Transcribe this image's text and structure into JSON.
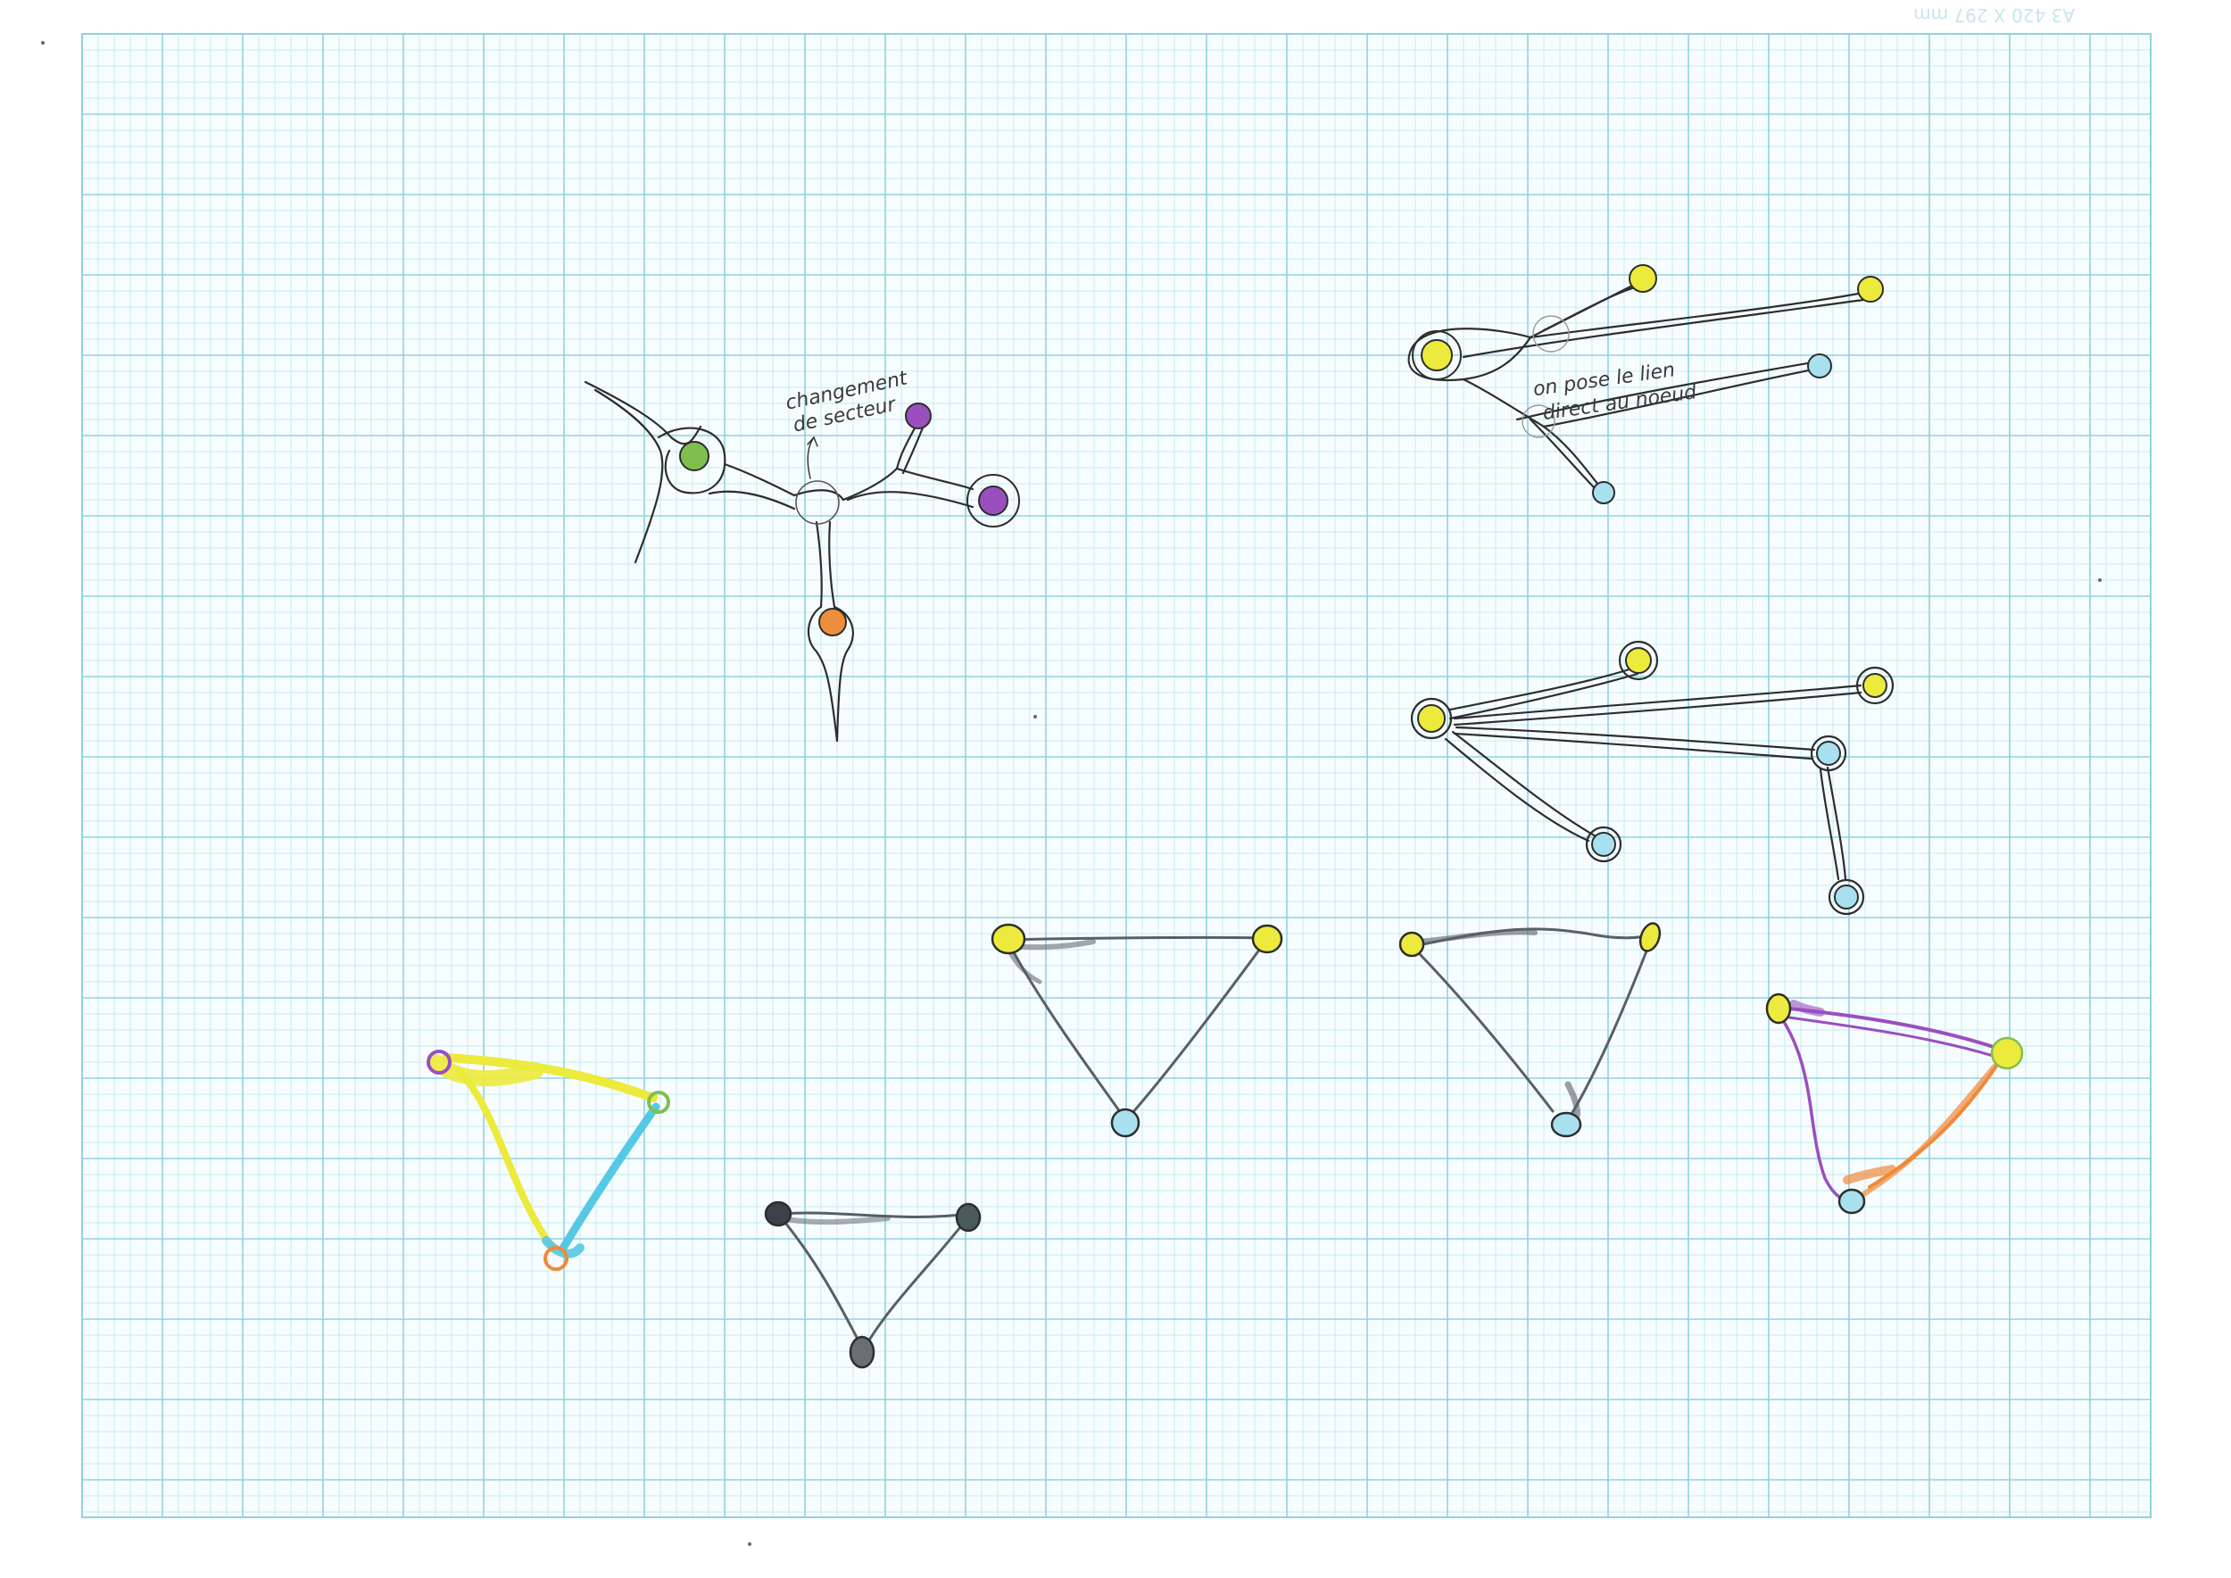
{
  "sheet": {
    "print_mark": "A3 420 X 297 mm",
    "grid_color": "#8fd3df",
    "grid_fine_color": "#c6ecf1"
  },
  "annotations": {
    "sector_line1": "changement",
    "sector_line2": "de secteur",
    "link_line1": "on pose le lien",
    "link_line2": "direct au noeud"
  },
  "colors": {
    "yellow": "#ecea3c",
    "green": "#7fbf4e",
    "purple": "#9a4fbf",
    "orange": "#ec8e3c",
    "light_blue": "#a9e0ef",
    "dark_gray": "#555f66",
    "ink": "#2d2d2d",
    "graphite": "#5a5f66",
    "cyan": "#56c8e6",
    "ochre_orange": "#ef8a3a"
  },
  "sketches": [
    {
      "id": "tree-sector-change",
      "nodes": [
        "green",
        "purple",
        "purple",
        "orange"
      ]
    },
    {
      "id": "fan-yellow-hub-open",
      "nodes": [
        "yellow",
        "yellow",
        "yellow",
        "light_blue",
        "light_blue"
      ]
    },
    {
      "id": "fan-yellow-hub-closed",
      "nodes": [
        "yellow",
        "yellow",
        "yellow",
        "light_blue",
        "light_blue",
        "light_blue"
      ]
    },
    {
      "id": "triangle-gray-large",
      "nodes": [
        "yellow",
        "yellow",
        "light_blue"
      ]
    },
    {
      "id": "triangle-gray-right",
      "nodes": [
        "yellow",
        "yellow",
        "light_blue"
      ]
    },
    {
      "id": "triangle-purple-orange",
      "nodes": [
        "yellow",
        "yellow",
        "light_blue"
      ]
    },
    {
      "id": "triangle-yellow-cyan",
      "nodes": [
        "purple",
        "green",
        "orange"
      ]
    },
    {
      "id": "triangle-dark-small",
      "nodes": [
        "dark_gray",
        "dark_gray",
        "dark_gray"
      ]
    }
  ]
}
